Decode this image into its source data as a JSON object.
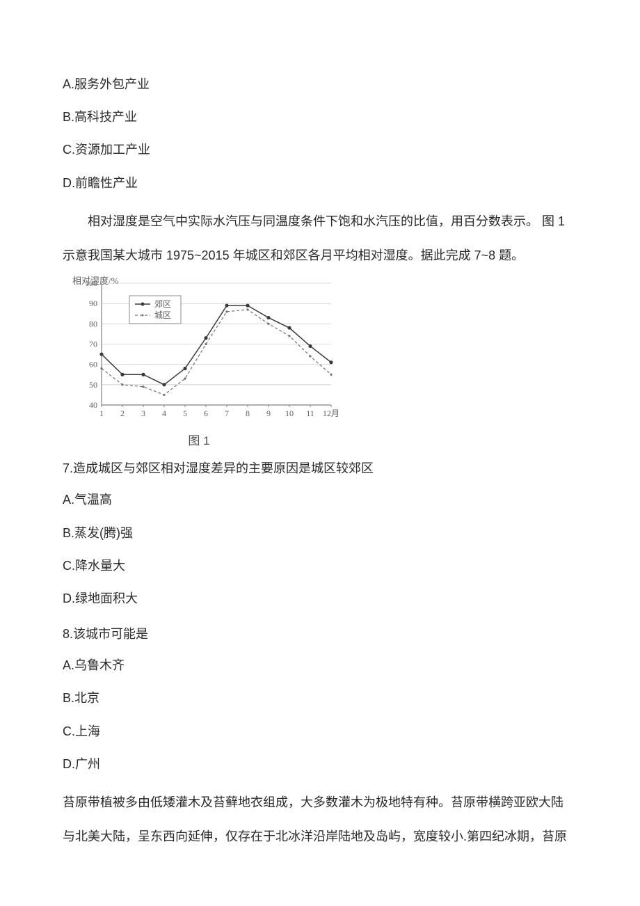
{
  "options_block1": {
    "a": "A.服务外包产业",
    "b": "B.高科技产业",
    "c": "C.资源加工产业",
    "d": "D.前瞻性产业"
  },
  "passage1_line1": "相对湿度是空气中实际水汽压与同温度条件下饱和水汽压的比值，用百分数表示。  图 1",
  "passage1_line2": "示意我国某大城市 1975~2015 年城区和郊区各月平均相对湿度。据此完成 7~8 题。",
  "chart": {
    "type": "line",
    "y_axis_label": "相对湿度/%",
    "y_ticks": [
      40,
      50,
      60,
      70,
      80,
      90,
      100
    ],
    "x_ticks": [
      "1",
      "2",
      "3",
      "4",
      "5",
      "6",
      "7",
      "8",
      "9",
      "10",
      "11",
      "12"
    ],
    "x_unit": "月",
    "legend": [
      "郊区",
      "城区"
    ],
    "series": {
      "suburban": {
        "label": "郊区",
        "values": [
          65,
          55,
          55,
          50,
          58,
          73,
          89,
          89,
          83,
          78,
          69,
          61
        ],
        "color": "#3a3a3a",
        "style": "solid",
        "marker": "circle"
      },
      "urban": {
        "label": "城区",
        "values": [
          58,
          50,
          49,
          45,
          53,
          70,
          86,
          87,
          80,
          74,
          64,
          55
        ],
        "color": "#707070",
        "style": "dashed",
        "marker": "dot"
      }
    },
    "ylim": [
      40,
      100
    ],
    "background_color": "#ffffff",
    "grid_color": "#cfcfcf",
    "axis_color": "#808080",
    "text_color": "#606060",
    "caption": "图 1"
  },
  "q7": {
    "text": "7.造成城区与郊区相对湿度差异的主要原因是城区较郊区",
    "a": "A.气温高",
    "b": "B.蒸发(腾)强",
    "c": "C.降水量大",
    "d": "D.绿地面积大"
  },
  "q8": {
    "text": "8.该城市可能是",
    "a": "A.乌鲁木齐",
    "b": "B.北京",
    "c": "C.上海",
    "d": "D.广州"
  },
  "passage2_line1": "苔原带植被多由低矮灌木及苔藓地衣组成，大多数灌木为极地特有种。苔原带横跨亚欧大陆",
  "passage2_line2": "与北美大陆，呈东西向延伸，仅存在于北冰洋沿岸陆地及岛屿，宽度较小.第四纪冰期，苔原"
}
